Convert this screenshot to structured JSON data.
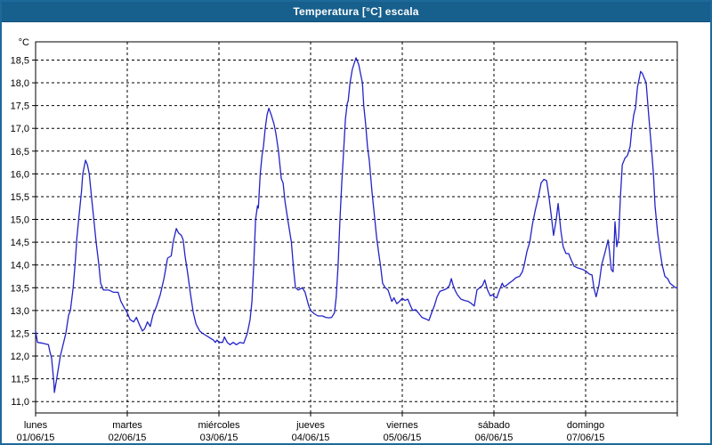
{
  "window": {
    "title": "Temperatura [°C] escala",
    "titlebar_color": "#175f8d",
    "frame_color": "#1d6a9a"
  },
  "chart_data": {
    "type": "line",
    "title": "Temperatura [°C] escala",
    "grid": {
      "style": "dashed",
      "color": "#000000",
      "on": true
    },
    "legend": "none",
    "y_axis": {
      "unit": "°C",
      "range": [
        10.75,
        18.9
      ],
      "tick_values": [
        18.5,
        18.0,
        17.5,
        17.0,
        16.5,
        16.0,
        15.5,
        15.0,
        14.5,
        14.0,
        13.5,
        13.0,
        12.5,
        12.0,
        11.5,
        11.0
      ],
      "tick_labels": [
        "18,5",
        "18,0",
        "17,5",
        "17,0",
        "16,5",
        "16,0",
        "15,5",
        "15,0",
        "14,5",
        "14,0",
        "13,5",
        "13,0",
        "12,5",
        "12,0",
        "11,5",
        "11,0"
      ]
    },
    "x_axis": {
      "unit": "days",
      "range_days": [
        0,
        7
      ],
      "days": [
        {
          "name": "lunes",
          "date": "01/06/15"
        },
        {
          "name": "martes",
          "date": "02/06/15"
        },
        {
          "name": "miércoles",
          "date": "03/06/15"
        },
        {
          "name": "jueves",
          "date": "04/06/15"
        },
        {
          "name": "viernes",
          "date": "05/06/15"
        },
        {
          "name": "sábado",
          "date": "06/06/15"
        },
        {
          "name": "domingo",
          "date": "07/06/15"
        }
      ]
    },
    "series": [
      {
        "name": "Temperatura",
        "color": "#2323c8",
        "points": [
          [
            0.0,
            12.55
          ],
          [
            0.02,
            12.3
          ],
          [
            0.08,
            12.28
          ],
          [
            0.14,
            12.25
          ],
          [
            0.155,
            12.1
          ],
          [
            0.175,
            11.95
          ],
          [
            0.2,
            11.4
          ],
          [
            0.205,
            11.2
          ],
          [
            0.23,
            11.5
          ],
          [
            0.27,
            12.0
          ],
          [
            0.33,
            12.5
          ],
          [
            0.36,
            12.9
          ],
          [
            0.38,
            13.0
          ],
          [
            0.41,
            13.5
          ],
          [
            0.43,
            14.0
          ],
          [
            0.45,
            14.6
          ],
          [
            0.47,
            15.0
          ],
          [
            0.5,
            15.6
          ],
          [
            0.515,
            16.0
          ],
          [
            0.545,
            16.3
          ],
          [
            0.565,
            16.2
          ],
          [
            0.585,
            16.0
          ],
          [
            0.61,
            15.5
          ],
          [
            0.63,
            15.1
          ],
          [
            0.66,
            14.5
          ],
          [
            0.69,
            14.0
          ],
          [
            0.71,
            13.6
          ],
          [
            0.74,
            13.45
          ],
          [
            0.8,
            13.45
          ],
          [
            0.85,
            13.4
          ],
          [
            0.9,
            13.4
          ],
          [
            0.93,
            13.2
          ],
          [
            0.97,
            13.05
          ],
          [
            1.0,
            12.95
          ],
          [
            1.03,
            12.8
          ],
          [
            1.07,
            12.75
          ],
          [
            1.1,
            12.85
          ],
          [
            1.13,
            12.7
          ],
          [
            1.165,
            12.55
          ],
          [
            1.19,
            12.6
          ],
          [
            1.22,
            12.75
          ],
          [
            1.25,
            12.65
          ],
          [
            1.28,
            12.9
          ],
          [
            1.32,
            13.1
          ],
          [
            1.36,
            13.35
          ],
          [
            1.4,
            13.7
          ],
          [
            1.44,
            14.15
          ],
          [
            1.48,
            14.2
          ],
          [
            1.5,
            14.5
          ],
          [
            1.535,
            14.8
          ],
          [
            1.56,
            14.7
          ],
          [
            1.59,
            14.65
          ],
          [
            1.61,
            14.55
          ],
          [
            1.63,
            14.2
          ],
          [
            1.66,
            13.8
          ],
          [
            1.69,
            13.35
          ],
          [
            1.72,
            12.95
          ],
          [
            1.75,
            12.7
          ],
          [
            1.79,
            12.55
          ],
          [
            1.82,
            12.5
          ],
          [
            1.86,
            12.45
          ],
          [
            1.9,
            12.4
          ],
          [
            1.94,
            12.35
          ],
          [
            1.96,
            12.3
          ],
          [
            1.98,
            12.35
          ],
          [
            2.0,
            12.3
          ],
          [
            2.04,
            12.3
          ],
          [
            2.06,
            12.42
          ],
          [
            2.09,
            12.3
          ],
          [
            2.12,
            12.25
          ],
          [
            2.155,
            12.3
          ],
          [
            2.19,
            12.25
          ],
          [
            2.23,
            12.3
          ],
          [
            2.27,
            12.28
          ],
          [
            2.31,
            12.5
          ],
          [
            2.34,
            12.8
          ],
          [
            2.36,
            13.2
          ],
          [
            2.38,
            14.0
          ],
          [
            2.4,
            15.0
          ],
          [
            2.42,
            15.3
          ],
          [
            2.43,
            15.25
          ],
          [
            2.45,
            16.0
          ],
          [
            2.47,
            16.4
          ],
          [
            2.485,
            16.6
          ],
          [
            2.505,
            17.0
          ],
          [
            2.525,
            17.3
          ],
          [
            2.545,
            17.44
          ],
          [
            2.57,
            17.3
          ],
          [
            2.6,
            17.1
          ],
          [
            2.62,
            16.9
          ],
          [
            2.65,
            16.5
          ],
          [
            2.67,
            16.1
          ],
          [
            2.68,
            15.9
          ],
          [
            2.7,
            15.8
          ],
          [
            2.72,
            15.4
          ],
          [
            2.75,
            15.0
          ],
          [
            2.79,
            14.5
          ],
          [
            2.815,
            13.9
          ],
          [
            2.835,
            13.5
          ],
          [
            2.865,
            13.45
          ],
          [
            2.91,
            13.5
          ],
          [
            2.94,
            13.4
          ],
          [
            2.98,
            13.1
          ],
          [
            3.0,
            13.0
          ],
          [
            3.04,
            12.93
          ],
          [
            3.08,
            12.88
          ],
          [
            3.13,
            12.88
          ],
          [
            3.165,
            12.85
          ],
          [
            3.2,
            12.84
          ],
          [
            3.23,
            12.85
          ],
          [
            3.26,
            12.95
          ],
          [
            3.28,
            13.3
          ],
          [
            3.3,
            14.0
          ],
          [
            3.32,
            15.0
          ],
          [
            3.34,
            15.8
          ],
          [
            3.36,
            16.5
          ],
          [
            3.38,
            17.2
          ],
          [
            3.4,
            17.55
          ],
          [
            3.41,
            17.6
          ],
          [
            3.43,
            18.0
          ],
          [
            3.455,
            18.3
          ],
          [
            3.495,
            18.55
          ],
          [
            3.525,
            18.4
          ],
          [
            3.545,
            18.2
          ],
          [
            3.565,
            18.0
          ],
          [
            3.58,
            17.5
          ],
          [
            3.6,
            17.1
          ],
          [
            3.62,
            16.6
          ],
          [
            3.64,
            16.3
          ],
          [
            3.67,
            15.6
          ],
          [
            3.69,
            15.2
          ],
          [
            3.72,
            14.6
          ],
          [
            3.75,
            14.15
          ],
          [
            3.765,
            13.95
          ],
          [
            3.785,
            13.6
          ],
          [
            3.815,
            13.5
          ],
          [
            3.845,
            13.45
          ],
          [
            3.885,
            13.2
          ],
          [
            3.91,
            13.28
          ],
          [
            3.94,
            13.15
          ],
          [
            3.97,
            13.2
          ],
          [
            4.0,
            13.27
          ],
          [
            4.03,
            13.22
          ],
          [
            4.06,
            13.25
          ],
          [
            4.09,
            13.1
          ],
          [
            4.115,
            13.0
          ],
          [
            4.145,
            13.02
          ],
          [
            4.175,
            12.95
          ],
          [
            4.215,
            12.85
          ],
          [
            4.25,
            12.82
          ],
          [
            4.29,
            12.78
          ],
          [
            4.32,
            12.95
          ],
          [
            4.35,
            13.1
          ],
          [
            4.38,
            13.3
          ],
          [
            4.41,
            13.42
          ],
          [
            4.45,
            13.45
          ],
          [
            4.485,
            13.48
          ],
          [
            4.515,
            13.55
          ],
          [
            4.535,
            13.7
          ],
          [
            4.555,
            13.55
          ],
          [
            4.575,
            13.45
          ],
          [
            4.6,
            13.35
          ],
          [
            4.64,
            13.25
          ],
          [
            4.68,
            13.22
          ],
          [
            4.72,
            13.2
          ],
          [
            4.755,
            13.15
          ],
          [
            4.785,
            13.1
          ],
          [
            4.815,
            13.45
          ],
          [
            4.845,
            13.5
          ],
          [
            4.875,
            13.55
          ],
          [
            4.9,
            13.67
          ],
          [
            4.93,
            13.45
          ],
          [
            4.96,
            13.32
          ],
          [
            4.99,
            13.35
          ],
          [
            5.0,
            13.3
          ],
          [
            5.03,
            13.28
          ],
          [
            5.06,
            13.45
          ],
          [
            5.09,
            13.6
          ],
          [
            5.11,
            13.52
          ],
          [
            5.135,
            13.55
          ],
          [
            5.165,
            13.6
          ],
          [
            5.2,
            13.65
          ],
          [
            5.24,
            13.72
          ],
          [
            5.28,
            13.75
          ],
          [
            5.31,
            13.85
          ],
          [
            5.33,
            14.0
          ],
          [
            5.36,
            14.3
          ],
          [
            5.39,
            14.5
          ],
          [
            5.42,
            14.9
          ],
          [
            5.45,
            15.2
          ],
          [
            5.485,
            15.5
          ],
          [
            5.515,
            15.8
          ],
          [
            5.545,
            15.88
          ],
          [
            5.575,
            15.85
          ],
          [
            5.6,
            15.5
          ],
          [
            5.63,
            15.0
          ],
          [
            5.65,
            14.65
          ],
          [
            5.68,
            15.0
          ],
          [
            5.7,
            15.35
          ],
          [
            5.73,
            14.75
          ],
          [
            5.755,
            14.4
          ],
          [
            5.785,
            14.25
          ],
          [
            5.815,
            14.25
          ],
          [
            5.845,
            14.1
          ],
          [
            5.875,
            13.97
          ],
          [
            5.92,
            13.93
          ],
          [
            5.97,
            13.9
          ],
          [
            6.0,
            13.87
          ],
          [
            6.04,
            13.8
          ],
          [
            6.07,
            13.78
          ],
          [
            6.09,
            13.5
          ],
          [
            6.115,
            13.3
          ],
          [
            6.145,
            13.55
          ],
          [
            6.175,
            14.0
          ],
          [
            6.215,
            14.3
          ],
          [
            6.245,
            14.55
          ],
          [
            6.26,
            14.3
          ],
          [
            6.28,
            13.9
          ],
          [
            6.3,
            13.85
          ],
          [
            6.32,
            14.95
          ],
          [
            6.34,
            14.4
          ],
          [
            6.36,
            14.6
          ],
          [
            6.38,
            15.5
          ],
          [
            6.4,
            16.2
          ],
          [
            6.43,
            16.35
          ],
          [
            6.455,
            16.4
          ],
          [
            6.485,
            16.6
          ],
          [
            6.505,
            17.0
          ],
          [
            6.525,
            17.3
          ],
          [
            6.545,
            17.45
          ],
          [
            6.565,
            17.9
          ],
          [
            6.585,
            18.1
          ],
          [
            6.6,
            18.25
          ],
          [
            6.62,
            18.2
          ],
          [
            6.64,
            18.1
          ],
          [
            6.66,
            18.0
          ],
          [
            6.68,
            17.5
          ],
          [
            6.7,
            17.0
          ],
          [
            6.72,
            16.5
          ],
          [
            6.74,
            16.0
          ],
          [
            6.757,
            15.3
          ],
          [
            6.785,
            14.7
          ],
          [
            6.805,
            14.4
          ],
          [
            6.835,
            14.0
          ],
          [
            6.865,
            13.75
          ],
          [
            6.895,
            13.7
          ],
          [
            6.92,
            13.6
          ],
          [
            6.95,
            13.55
          ],
          [
            6.98,
            13.5
          ],
          [
            7.0,
            13.5
          ]
        ]
      }
    ]
  }
}
